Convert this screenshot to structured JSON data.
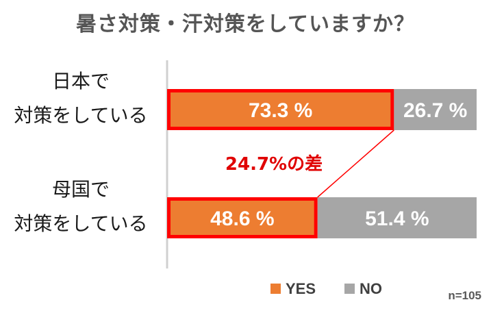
{
  "chart_data": {
    "type": "bar",
    "orientation": "horizontal",
    "stacked": true,
    "normalized_percent": true,
    "title": "暑さ対策・汗対策をしていますか？",
    "categories": [
      [
        "日本で",
        "対策をしている"
      ],
      [
        "母国で",
        "対策をしている"
      ]
    ],
    "series": [
      {
        "name": "YES",
        "values": [
          73.3,
          48.6
        ],
        "color": "#ED7D31"
      },
      {
        "name": "NO",
        "values": [
          26.7,
          51.4
        ],
        "color": "#A6A6A6"
      }
    ],
    "value_labels": [
      [
        "73.3 %",
        "26.7 %"
      ],
      [
        "48.6 %",
        "51.4 %"
      ]
    ],
    "highlight": {
      "series": "YES",
      "color": "#FF0000"
    },
    "annotation": {
      "text": "24.7%の差",
      "color": "#E00000"
    },
    "legend": {
      "position": "bottom",
      "items": [
        "YES",
        "NO"
      ]
    },
    "sample_size": "n=105",
    "xlim": [
      0,
      100
    ],
    "grid": false
  }
}
